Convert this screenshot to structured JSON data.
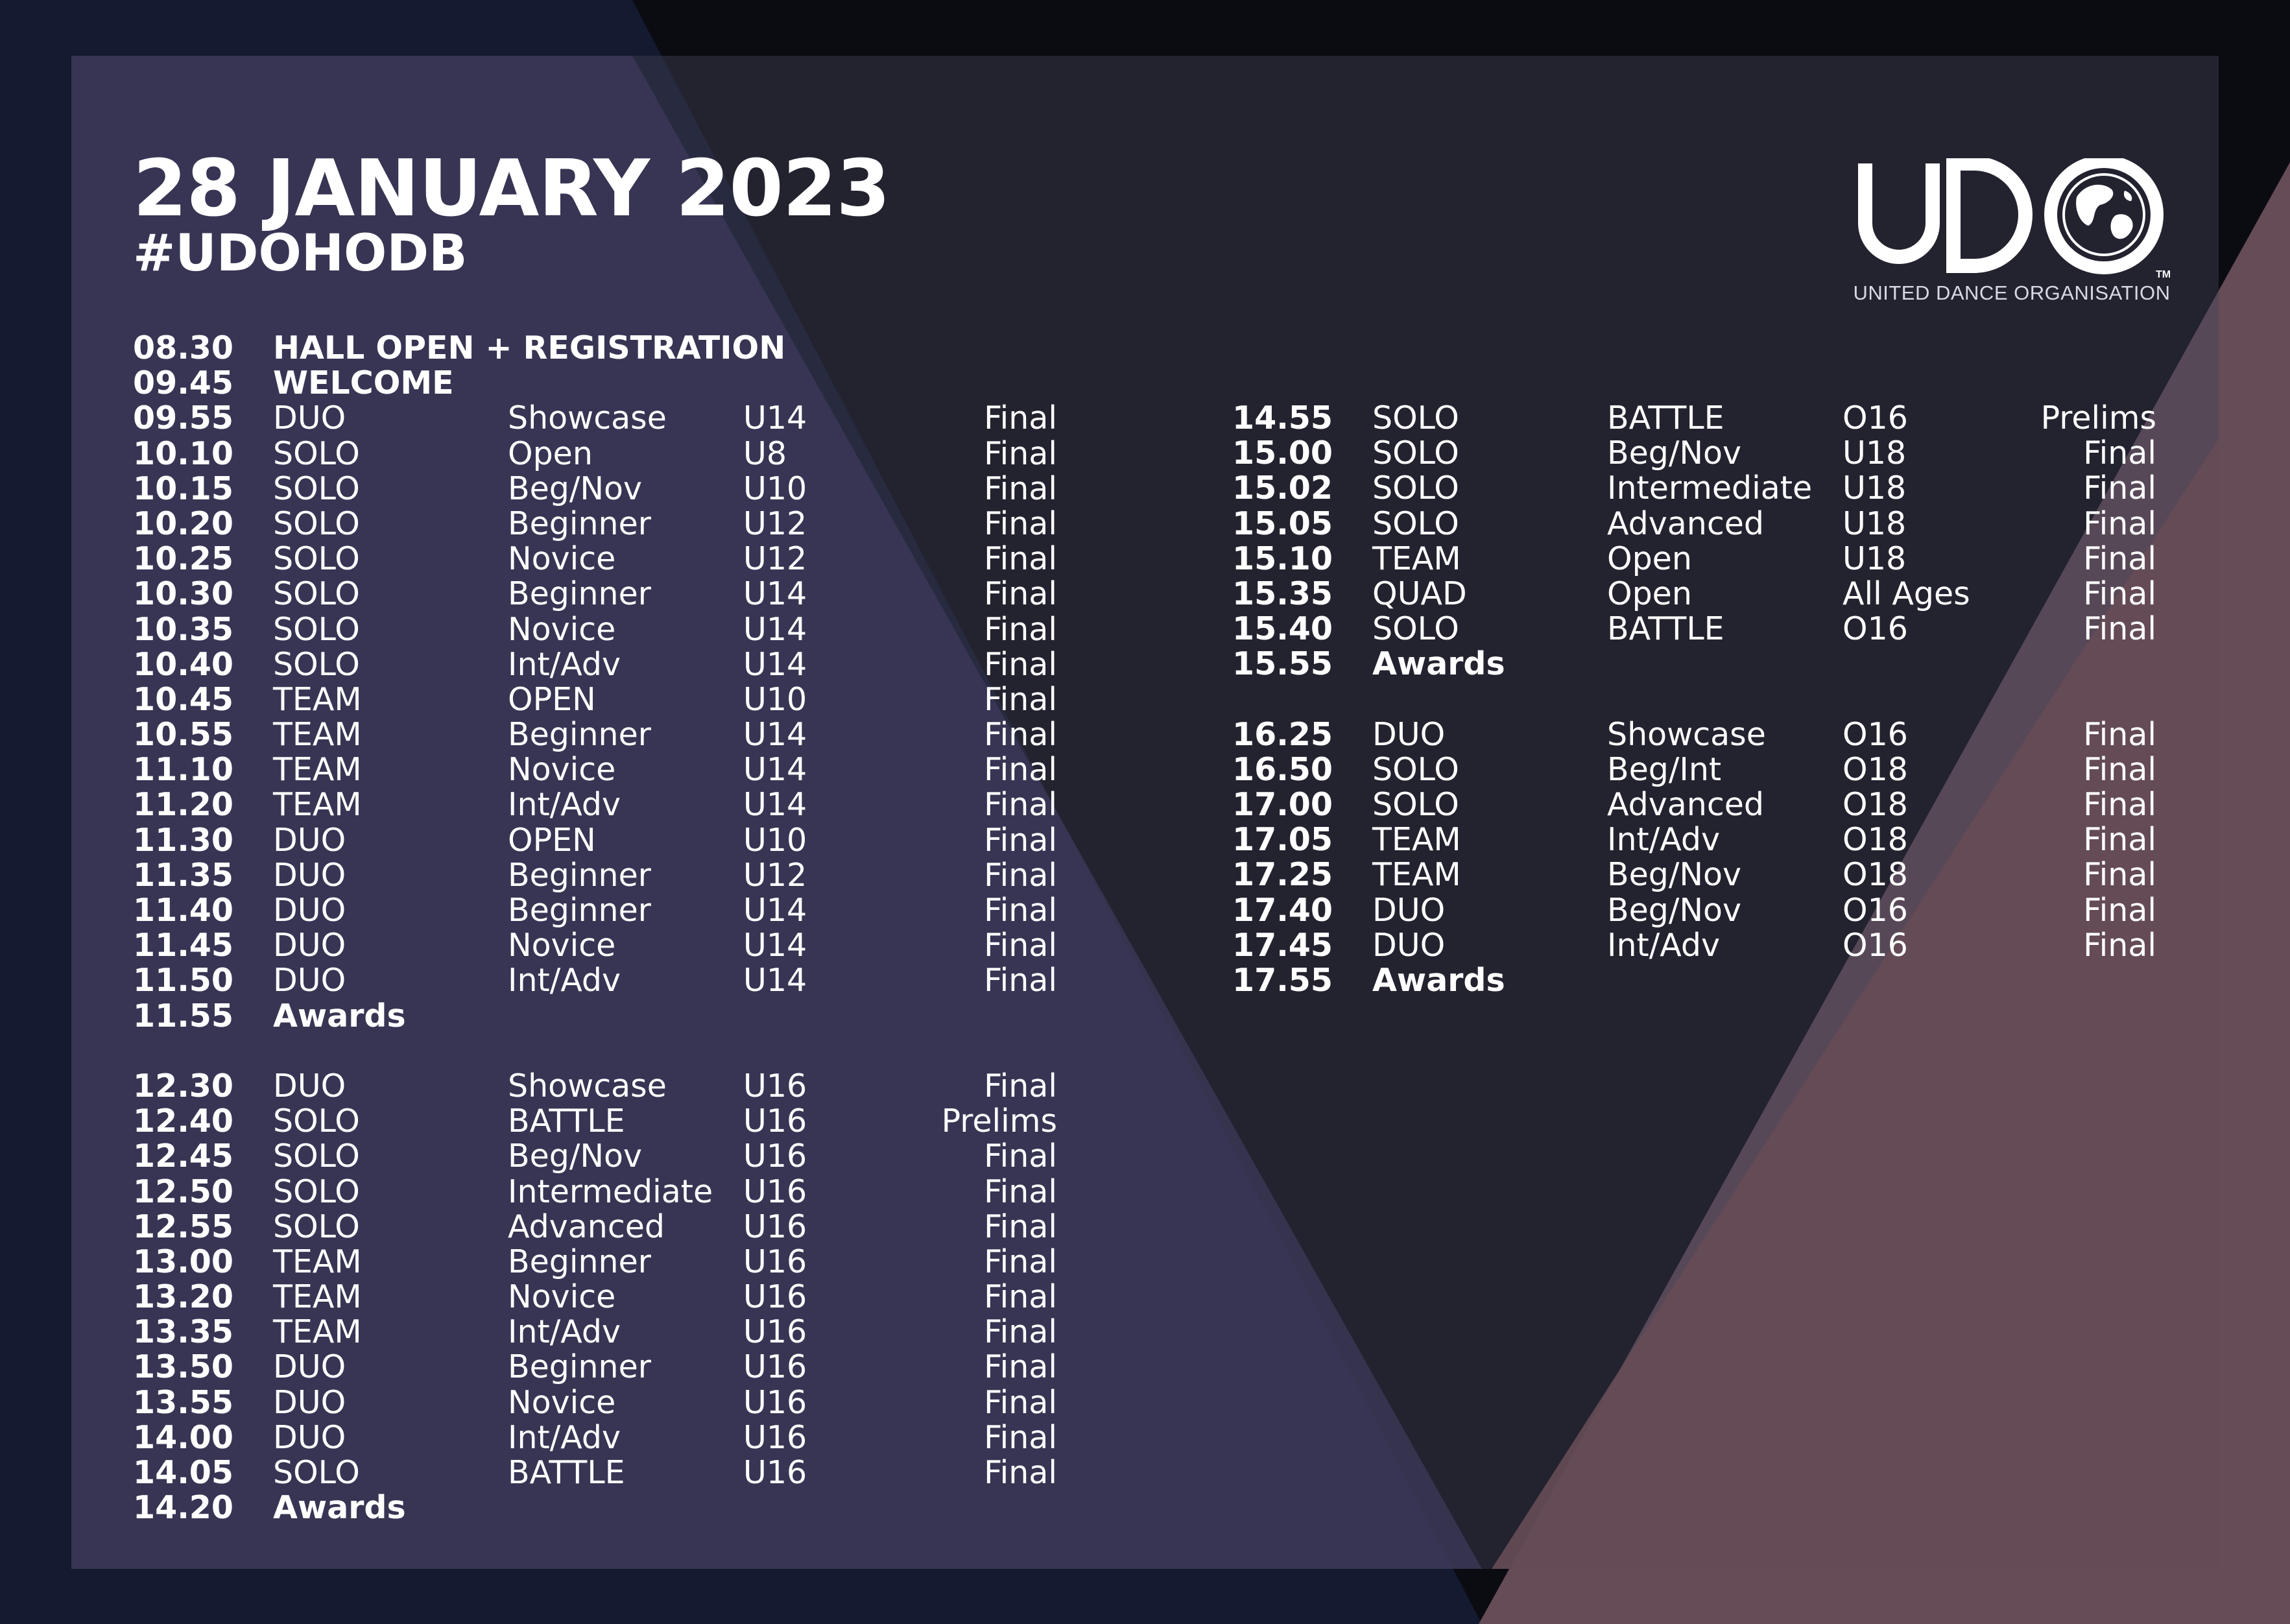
{
  "header": {
    "date": "28 JANUARY 2023",
    "hashtag": "#UDOHODB"
  },
  "logo": {
    "mark": "UDO",
    "trademark": "TM",
    "subtitle": "UNITED DANCE ORGANISATION",
    "icon": "globe-icon"
  },
  "colors": {
    "background": "#0b0b12",
    "panel": "#3d3a4e",
    "left_triangle": "#3c3858",
    "right_triangle": "#654c56",
    "text": "#ffffff"
  },
  "schedule_left": [
    {
      "time": "08.30",
      "label": "HALL OPEN + REGISTRATION"
    },
    {
      "time": "09.45",
      "label": "WELCOME"
    },
    {
      "time": "09.55",
      "type": "DUO",
      "level": "Showcase",
      "age": "U14",
      "round": "Final"
    },
    {
      "time": "10.10",
      "type": "SOLO",
      "level": "Open",
      "age": "U8",
      "round": "Final"
    },
    {
      "time": "10.15",
      "type": "SOLO",
      "level": "Beg/Nov",
      "age": "U10",
      "round": "Final"
    },
    {
      "time": "10.20",
      "type": "SOLO",
      "level": "Beginner",
      "age": "U12",
      "round": "Final"
    },
    {
      "time": "10.25",
      "type": "SOLO",
      "level": "Novice",
      "age": "U12",
      "round": "Final"
    },
    {
      "time": "10.30",
      "type": "SOLO",
      "level": "Beginner",
      "age": "U14",
      "round": "Final"
    },
    {
      "time": "10.35",
      "type": "SOLO",
      "level": "Novice",
      "age": "U14",
      "round": "Final"
    },
    {
      "time": "10.40",
      "type": "SOLO",
      "level": "Int/Adv",
      "age": "U14",
      "round": "Final"
    },
    {
      "time": "10.45",
      "type": "TEAM",
      "level": "OPEN",
      "age": "U10",
      "round": "Final"
    },
    {
      "time": "10.55",
      "type": "TEAM",
      "level": "Beginner",
      "age": "U14",
      "round": "Final"
    },
    {
      "time": "11.10",
      "type": "TEAM",
      "level": "Novice",
      "age": "U14",
      "round": "Final"
    },
    {
      "time": "11.20",
      "type": "TEAM",
      "level": "Int/Adv",
      "age": "U14",
      "round": "Final"
    },
    {
      "time": "11.30",
      "type": "DUO",
      "level": "OPEN",
      "age": "U10",
      "round": "Final"
    },
    {
      "time": "11.35",
      "type": "DUO",
      "level": "Beginner",
      "age": "U12",
      "round": "Final"
    },
    {
      "time": "11.40",
      "type": "DUO",
      "level": "Beginner",
      "age": "U14",
      "round": "Final"
    },
    {
      "time": "11.45",
      "type": "DUO",
      "level": "Novice",
      "age": "U14",
      "round": "Final"
    },
    {
      "time": "11.50",
      "type": "DUO",
      "level": "Int/Adv",
      "age": "U14",
      "round": "Final"
    },
    {
      "time": "11.55",
      "label": "Awards"
    },
    {
      "gap": true
    },
    {
      "time": "12.30",
      "type": "DUO",
      "level": "Showcase",
      "age": "U16",
      "round": "Final"
    },
    {
      "time": "12.40",
      "type": "SOLO",
      "level": "BATTLE",
      "age": "U16",
      "round": "Prelims"
    },
    {
      "time": "12.45",
      "type": "SOLO",
      "level": "Beg/Nov",
      "age": "U16",
      "round": "Final"
    },
    {
      "time": "12.50",
      "type": "SOLO",
      "level": "Intermediate",
      "age": "U16",
      "round": "Final"
    },
    {
      "time": "12.55",
      "type": "SOLO",
      "level": "Advanced",
      "age": "U16",
      "round": "Final"
    },
    {
      "time": "13.00",
      "type": "TEAM",
      "level": "Beginner",
      "age": "U16",
      "round": "Final"
    },
    {
      "time": "13.20",
      "type": "TEAM",
      "level": "Novice",
      "age": "U16",
      "round": "Final"
    },
    {
      "time": "13.35",
      "type": "TEAM",
      "level": "Int/Adv",
      "age": "U16",
      "round": "Final"
    },
    {
      "time": "13.50",
      "type": "DUO",
      "level": "Beginner",
      "age": "U16",
      "round": "Final"
    },
    {
      "time": "13.55",
      "type": "DUO",
      "level": "Novice",
      "age": "U16",
      "round": "Final"
    },
    {
      "time": "14.00",
      "type": "DUO",
      "level": "Int/Adv",
      "age": "U16",
      "round": "Final"
    },
    {
      "time": "14.05",
      "type": "SOLO",
      "level": "BATTLE",
      "age": "U16",
      "round": "Final"
    },
    {
      "time": "14.20",
      "label": "Awards"
    }
  ],
  "schedule_right": [
    {
      "time": "14.55",
      "type": "SOLO",
      "level": "BATTLE",
      "age": "O16",
      "round": "Prelims"
    },
    {
      "time": "15.00",
      "type": "SOLO",
      "level": "Beg/Nov",
      "age": "U18",
      "round": "Final"
    },
    {
      "time": "15.02",
      "type": "SOLO",
      "level": "Intermediate",
      "age": "U18",
      "round": "Final"
    },
    {
      "time": "15.05",
      "type": "SOLO",
      "level": "Advanced",
      "age": "U18",
      "round": "Final"
    },
    {
      "time": "15.10",
      "type": "TEAM",
      "level": "Open",
      "age": "U18",
      "round": "Final"
    },
    {
      "time": "15.35",
      "type": "QUAD",
      "level": "Open",
      "age": "All Ages",
      "round": "Final"
    },
    {
      "time": "15.40",
      "type": "SOLO",
      "level": "BATTLE",
      "age": "O16",
      "round": "Final"
    },
    {
      "time": "15.55",
      "label": "Awards"
    },
    {
      "gap": true
    },
    {
      "time": "16.25",
      "type": "DUO",
      "level": "Showcase",
      "age": "O16",
      "round": "Final"
    },
    {
      "time": "16.50",
      "type": "SOLO",
      "level": "Beg/Int",
      "age": "O18",
      "round": "Final"
    },
    {
      "time": "17.00",
      "type": "SOLO",
      "level": "Advanced",
      "age": "O18",
      "round": "Final"
    },
    {
      "time": "17.05",
      "type": "TEAM",
      "level": "Int/Adv",
      "age": "O18",
      "round": "Final"
    },
    {
      "time": "17.25",
      "type": "TEAM",
      "level": "Beg/Nov",
      "age": "O18",
      "round": "Final"
    },
    {
      "time": "17.40",
      "type": "DUO",
      "level": "Beg/Nov",
      "age": "O16",
      "round": "Final"
    },
    {
      "time": "17.45",
      "type": "DUO",
      "level": "Int/Adv",
      "age": "O16",
      "round": "Final"
    },
    {
      "time": "17.55",
      "label": "Awards"
    }
  ]
}
